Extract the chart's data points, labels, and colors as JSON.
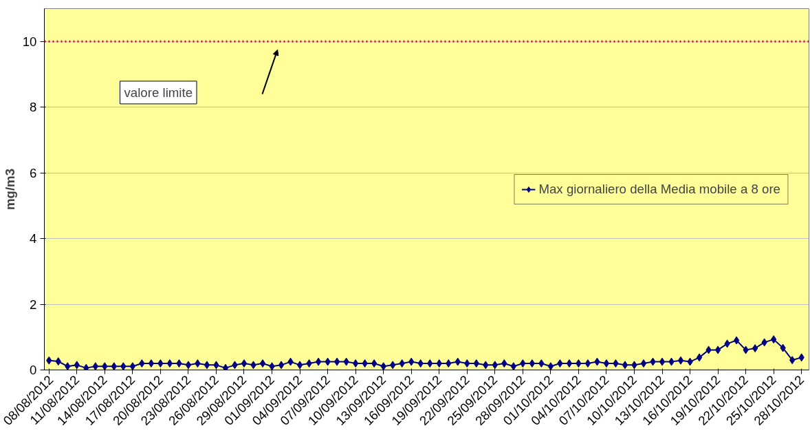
{
  "chart_data": {
    "type": "line",
    "ylabel": "mg/m3",
    "categories": [
      "08/08/2012",
      null,
      null,
      "11/08/2012",
      null,
      null,
      "14/08/2012",
      null,
      null,
      "17/08/2012",
      null,
      null,
      "20/08/2012",
      null,
      null,
      "23/08/2012",
      null,
      null,
      "26/08/2012",
      null,
      null,
      "29/08/2012",
      null,
      null,
      "01/09/2012",
      null,
      null,
      "04/09/2012",
      null,
      null,
      "07/09/2012",
      null,
      null,
      "10/09/2012",
      null,
      null,
      "13/09/2012",
      null,
      null,
      "16/09/2012",
      null,
      null,
      "19/09/2012",
      null,
      null,
      "22/09/2012",
      null,
      null,
      "25/09/2012",
      null,
      null,
      "28/09/2012",
      null,
      null,
      "01/10/2012",
      null,
      null,
      "04/10/2012",
      null,
      null,
      "07/10/2012",
      null,
      null,
      "10/10/2012",
      null,
      null,
      "13/10/2012",
      null,
      null,
      "16/10/2012",
      null,
      null,
      "19/10/2012",
      null,
      null,
      "22/10/2012",
      null,
      null,
      "25/10/2012",
      null,
      null,
      "28/10/2012"
    ],
    "series": [
      {
        "name": "Max giornaliero della Media mobile a 8 ore",
        "color": "#000080",
        "values": [
          0.29,
          0.26,
          0.11,
          0.15,
          0.06,
          0.11,
          0.11,
          0.11,
          0.11,
          0.11,
          0.2,
          0.2,
          0.2,
          0.2,
          0.2,
          0.15,
          0.2,
          0.15,
          0.15,
          0.06,
          0.15,
          0.2,
          0.15,
          0.2,
          0.11,
          0.15,
          0.25,
          0.15,
          0.2,
          0.25,
          0.25,
          0.25,
          0.25,
          0.2,
          0.2,
          0.2,
          0.11,
          0.15,
          0.2,
          0.25,
          0.2,
          0.2,
          0.2,
          0.2,
          0.25,
          0.2,
          0.2,
          0.15,
          0.15,
          0.2,
          0.11,
          0.2,
          0.2,
          0.2,
          0.11,
          0.2,
          0.2,
          0.2,
          0.2,
          0.25,
          0.2,
          0.2,
          0.15,
          0.15,
          0.2,
          0.25,
          0.25,
          0.25,
          0.29,
          0.25,
          0.38,
          0.61,
          0.61,
          0.8,
          0.9,
          0.61,
          0.66,
          0.84,
          0.93,
          0.67,
          0.3,
          0.38
        ]
      }
    ],
    "ylim": [
      0,
      11
    ],
    "yticks": [
      0,
      2,
      4,
      6,
      8,
      10
    ],
    "grid": "y",
    "legend": "right",
    "marker": "diamond",
    "line_style": "solid",
    "annotations": [
      "valore limite"
    ],
    "ref_lines": [
      {
        "axis": "y",
        "value": 10,
        "color": "#ff0000",
        "line_style": "dotted"
      }
    ]
  }
}
